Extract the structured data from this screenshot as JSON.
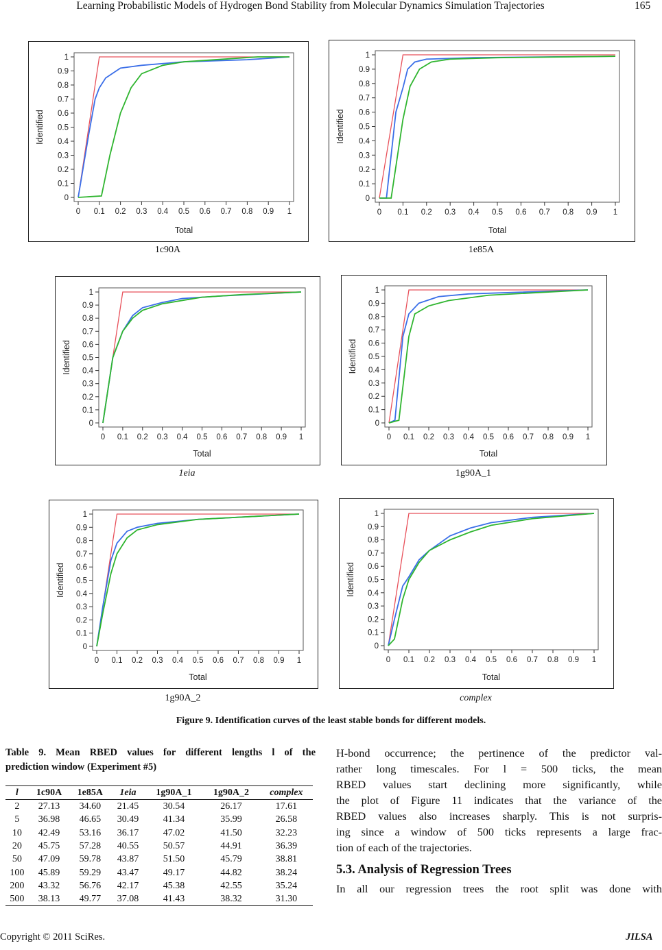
{
  "header": {
    "title": "Learning Probabilistic Models of Hydrogen Bond Stability from Molecular Dynamics Simulation Trajectories",
    "page_number": "165"
  },
  "chart_data": [
    {
      "type": "line",
      "caption": "1c90A",
      "xlabel": "Total",
      "ylabel": "Identified",
      "xlim": [
        0,
        1
      ],
      "ylim": [
        0,
        1
      ],
      "xticks": [
        "0",
        "0.1",
        "0.2",
        "0.3",
        "0.4",
        "0.5",
        "0.6",
        "0.7",
        "0.8",
        "0.9",
        "1"
      ],
      "yticks": [
        "0",
        "0.1",
        "0.2",
        "0.3",
        "0.4",
        "0.5",
        "0.6",
        "0.7",
        "0.8",
        "0.9",
        "1"
      ],
      "series": [
        {
          "color": "#e8505a",
          "points": [
            [
              0,
              0
            ],
            [
              0.1,
              1
            ],
            [
              1,
              1
            ]
          ]
        },
        {
          "color": "#3a6ee8",
          "points": [
            [
              0,
              0
            ],
            [
              0.05,
              0.45
            ],
            [
              0.08,
              0.7
            ],
            [
              0.1,
              0.78
            ],
            [
              0.13,
              0.85
            ],
            [
              0.2,
              0.92
            ],
            [
              0.3,
              0.94
            ],
            [
              0.5,
              0.965
            ],
            [
              0.8,
              0.98
            ],
            [
              1,
              1
            ]
          ]
        },
        {
          "color": "#2fb52f",
          "points": [
            [
              0,
              0
            ],
            [
              0.11,
              0.01
            ],
            [
              0.15,
              0.3
            ],
            [
              0.2,
              0.6
            ],
            [
              0.25,
              0.78
            ],
            [
              0.3,
              0.88
            ],
            [
              0.4,
              0.94
            ],
            [
              0.5,
              0.965
            ],
            [
              0.7,
              0.985
            ],
            [
              0.85,
              1
            ],
            [
              1,
              1
            ]
          ]
        }
      ]
    },
    {
      "type": "line",
      "caption": "1e85A",
      "xlabel": "Total",
      "ylabel": "Identified",
      "xlim": [
        0,
        1
      ],
      "ylim": [
        0,
        1
      ],
      "xticks": [
        "0",
        "0.1",
        "0.2",
        "0.3",
        "0.4",
        "0.5",
        "0.6",
        "0.7",
        "0.8",
        "0.9",
        "1"
      ],
      "yticks": [
        "0",
        "0.1",
        "0.2",
        "0.3",
        "0.4",
        "0.5",
        "0.6",
        "0.7",
        "0.8",
        "0.9",
        "1"
      ],
      "series": [
        {
          "color": "#e8505a",
          "points": [
            [
              0,
              0
            ],
            [
              0.1,
              1
            ],
            [
              1,
              1
            ]
          ]
        },
        {
          "color": "#3a6ee8",
          "points": [
            [
              0,
              0
            ],
            [
              0.03,
              0
            ],
            [
              0.07,
              0.6
            ],
            [
              0.1,
              0.77
            ],
            [
              0.12,
              0.9
            ],
            [
              0.15,
              0.95
            ],
            [
              0.2,
              0.97
            ],
            [
              0.4,
              0.98
            ],
            [
              1,
              0.99
            ]
          ]
        },
        {
          "color": "#2fb52f",
          "points": [
            [
              0,
              0
            ],
            [
              0.05,
              0
            ],
            [
              0.1,
              0.55
            ],
            [
              0.13,
              0.78
            ],
            [
              0.17,
              0.9
            ],
            [
              0.22,
              0.95
            ],
            [
              0.3,
              0.97
            ],
            [
              0.5,
              0.98
            ],
            [
              1,
              0.99
            ]
          ]
        }
      ]
    },
    {
      "type": "line",
      "caption": "1eia",
      "xlabel": "Total",
      "ylabel": "Identified",
      "xlim": [
        0,
        1
      ],
      "ylim": [
        0,
        1
      ],
      "xticks": [
        "0",
        "0.1",
        "0.2",
        "0.3",
        "0.4",
        "0.5",
        "0.6",
        "0.7",
        "0.8",
        "0.9",
        "1"
      ],
      "yticks": [
        "0",
        "0.1",
        "0.2",
        "0.3",
        "0.4",
        "0.5",
        "0.6",
        "0.7",
        "0.8",
        "0.9",
        "1"
      ],
      "series": [
        {
          "color": "#e8505a",
          "points": [
            [
              0,
              0
            ],
            [
              0.1,
              1
            ],
            [
              1,
              1
            ]
          ]
        },
        {
          "color": "#3a6ee8",
          "points": [
            [
              0,
              0
            ],
            [
              0.05,
              0.5
            ],
            [
              0.1,
              0.7
            ],
            [
              0.15,
              0.82
            ],
            [
              0.2,
              0.88
            ],
            [
              0.3,
              0.92
            ],
            [
              0.4,
              0.95
            ],
            [
              0.6,
              0.97
            ],
            [
              1,
              1
            ]
          ]
        },
        {
          "color": "#2fb52f",
          "points": [
            [
              0,
              0
            ],
            [
              0.05,
              0.5
            ],
            [
              0.1,
              0.7
            ],
            [
              0.15,
              0.8
            ],
            [
              0.2,
              0.86
            ],
            [
              0.3,
              0.91
            ],
            [
              0.5,
              0.96
            ],
            [
              0.7,
              0.98
            ],
            [
              1,
              1
            ]
          ]
        }
      ]
    },
    {
      "type": "line",
      "caption": "1g90A_1",
      "xlabel": "Total",
      "ylabel": "Identified",
      "xlim": [
        0,
        1
      ],
      "ylim": [
        0,
        1
      ],
      "xticks": [
        "0",
        "0.1",
        "0.2",
        "0.3",
        "0.4",
        "0.5",
        "0.6",
        "0.7",
        "0.8",
        "0.9",
        "1"
      ],
      "yticks": [
        "0",
        "0.1",
        "0.2",
        "0.3",
        "0.4",
        "0.5",
        "0.6",
        "0.7",
        "0.8",
        "0.9",
        "1"
      ],
      "series": [
        {
          "color": "#e8505a",
          "points": [
            [
              0,
              0
            ],
            [
              0.1,
              1
            ],
            [
              1,
              1
            ]
          ]
        },
        {
          "color": "#3a6ee8",
          "points": [
            [
              0,
              0
            ],
            [
              0.03,
              0.02
            ],
            [
              0.07,
              0.65
            ],
            [
              0.1,
              0.82
            ],
            [
              0.15,
              0.9
            ],
            [
              0.25,
              0.95
            ],
            [
              0.4,
              0.97
            ],
            [
              1,
              1
            ]
          ]
        },
        {
          "color": "#2fb52f",
          "points": [
            [
              0,
              0
            ],
            [
              0.05,
              0.02
            ],
            [
              0.1,
              0.65
            ],
            [
              0.13,
              0.82
            ],
            [
              0.2,
              0.88
            ],
            [
              0.3,
              0.92
            ],
            [
              0.5,
              0.96
            ],
            [
              1,
              1
            ]
          ]
        }
      ]
    },
    {
      "type": "line",
      "caption": "1g90A_2",
      "xlabel": "Total",
      "ylabel": "Identified",
      "xlim": [
        0,
        1
      ],
      "ylim": [
        0,
        1
      ],
      "xticks": [
        "0",
        "0.1",
        "0.2",
        "0.3",
        "0.4",
        "0.5",
        "0.6",
        "0.7",
        "0.8",
        "0.9",
        "1"
      ],
      "yticks": [
        "0",
        "0.1",
        "0.2",
        "0.3",
        "0.4",
        "0.5",
        "0.6",
        "0.7",
        "0.8",
        "0.9",
        "1"
      ],
      "series": [
        {
          "color": "#e8505a",
          "points": [
            [
              0,
              0
            ],
            [
              0.1,
              1
            ],
            [
              1,
              1
            ]
          ]
        },
        {
          "color": "#3a6ee8",
          "points": [
            [
              0,
              0
            ],
            [
              0.03,
              0.3
            ],
            [
              0.07,
              0.65
            ],
            [
              0.1,
              0.78
            ],
            [
              0.15,
              0.87
            ],
            [
              0.2,
              0.9
            ],
            [
              0.3,
              0.93
            ],
            [
              0.5,
              0.96
            ],
            [
              1,
              1
            ]
          ]
        },
        {
          "color": "#2fb52f",
          "points": [
            [
              0,
              0
            ],
            [
              0.03,
              0.25
            ],
            [
              0.07,
              0.55
            ],
            [
              0.1,
              0.7
            ],
            [
              0.15,
              0.82
            ],
            [
              0.2,
              0.88
            ],
            [
              0.3,
              0.92
            ],
            [
              0.5,
              0.96
            ],
            [
              1,
              1
            ]
          ]
        }
      ]
    },
    {
      "type": "line",
      "caption": "complex",
      "xlabel": "Total",
      "ylabel": "Identified",
      "xlim": [
        0,
        1
      ],
      "ylim": [
        0,
        1
      ],
      "xticks": [
        "0",
        "0.1",
        "0.2",
        "0.3",
        "0.4",
        "0.5",
        "0.6",
        "0.7",
        "0.8",
        "0.9",
        "1"
      ],
      "yticks": [
        "0",
        "0.1",
        "0.2",
        "0.3",
        "0.4",
        "0.5",
        "0.6",
        "0.7",
        "0.8",
        "0.9",
        "1"
      ],
      "series": [
        {
          "color": "#e8505a",
          "points": [
            [
              0,
              0
            ],
            [
              0.1,
              1
            ],
            [
              1,
              1
            ]
          ]
        },
        {
          "color": "#3a6ee8",
          "points": [
            [
              0,
              0
            ],
            [
              0.03,
              0.2
            ],
            [
              0.07,
              0.45
            ],
            [
              0.1,
              0.52
            ],
            [
              0.15,
              0.65
            ],
            [
              0.2,
              0.72
            ],
            [
              0.3,
              0.83
            ],
            [
              0.4,
              0.89
            ],
            [
              0.5,
              0.93
            ],
            [
              0.7,
              0.97
            ],
            [
              1,
              1
            ]
          ]
        },
        {
          "color": "#2fb52f",
          "points": [
            [
              0,
              0
            ],
            [
              0.03,
              0.05
            ],
            [
              0.07,
              0.35
            ],
            [
              0.1,
              0.5
            ],
            [
              0.15,
              0.63
            ],
            [
              0.2,
              0.72
            ],
            [
              0.3,
              0.8
            ],
            [
              0.4,
              0.86
            ],
            [
              0.5,
              0.91
            ],
            [
              0.7,
              0.96
            ],
            [
              1,
              1
            ]
          ]
        }
      ]
    }
  ],
  "figure_caption": "Figure 9. Identification curves of the least stable bonds for different models.",
  "table": {
    "title_lines": [
      "Table 9. Mean RBED values for different lengths l of the",
      "prediction window (Experiment #5)"
    ],
    "headers": [
      "l",
      "1c90A",
      "1e85A",
      "1eia",
      "1g90A_1",
      "1g90A_2",
      "complex"
    ],
    "rows": [
      [
        "2",
        "27.13",
        "34.60",
        "21.45",
        "30.54",
        "26.17",
        "17.61"
      ],
      [
        "5",
        "36.98",
        "46.65",
        "30.49",
        "41.34",
        "35.99",
        "26.58"
      ],
      [
        "10",
        "42.49",
        "53.16",
        "36.17",
        "47.02",
        "41.50",
        "32.23"
      ],
      [
        "20",
        "45.75",
        "57.28",
        "40.55",
        "50.57",
        "44.91",
        "36.39"
      ],
      [
        "50",
        "47.09",
        "59.78",
        "43.87",
        "51.50",
        "45.79",
        "38.81"
      ],
      [
        "100",
        "45.89",
        "59.29",
        "43.47",
        "49.17",
        "44.82",
        "38.24"
      ],
      [
        "200",
        "43.32",
        "56.76",
        "42.17",
        "45.38",
        "42.55",
        "35.24"
      ],
      [
        "500",
        "38.13",
        "49.77",
        "37.08",
        "41.43",
        "38.32",
        "31.30"
      ]
    ]
  },
  "body": {
    "lines": [
      "H-bond occurrence; the pertinence of the predictor val-",
      "rather long timescales. For l = 500 ticks, the mean",
      "RBED values start declining more significantly, while",
      "the plot of Figure 11 indicates that the variance of the",
      "RBED values also increases sharply. This is not surpris-",
      "ing since a window of 500 ticks represents a large frac-",
      "tion of each of the trajectories."
    ],
    "section_heading": "5.3. Analysis of Regression Trees",
    "paragraph": "In all our regression trees the root split was done with"
  },
  "footer": {
    "copyright": "Copyright © 2011 SciRes.",
    "journal": "JILSA"
  }
}
